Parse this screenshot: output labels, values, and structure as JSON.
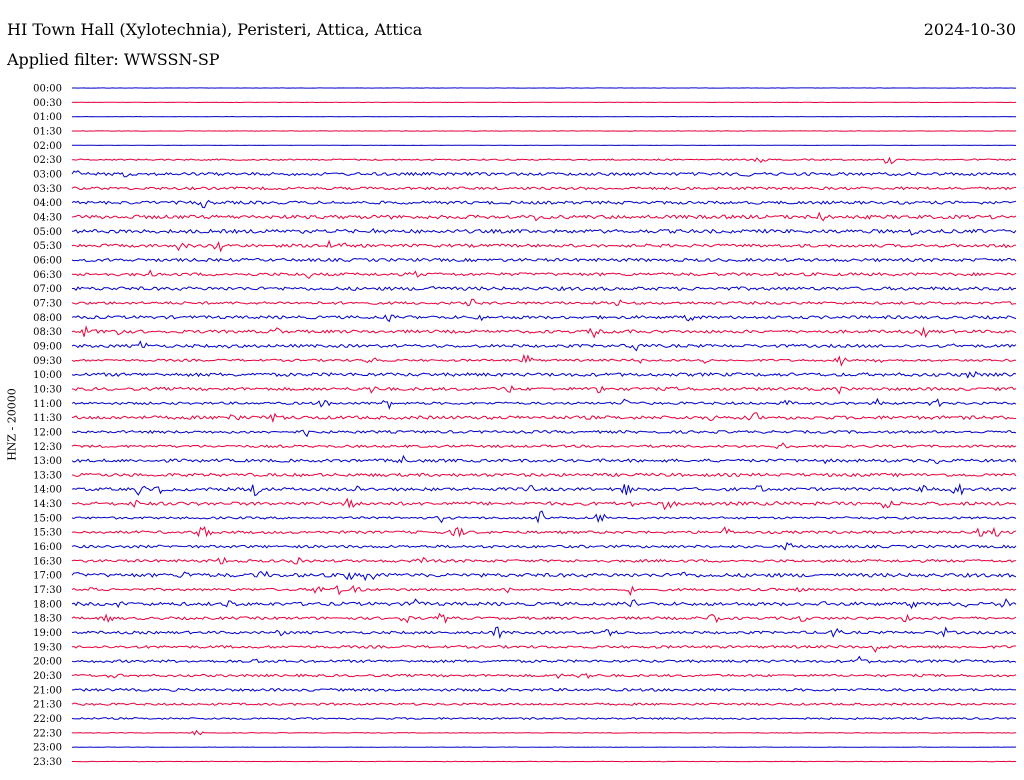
{
  "header": {
    "title": "HI Town Hall (Xylotechnia), Peristeri, Attica, Attica",
    "date": "2024-10-30",
    "filter": "Applied filter: WWSSN-SP",
    "channel_label": "HNZ - 20000"
  },
  "colors": {
    "even_line": "#0000c8",
    "odd_line": "#e8003c"
  },
  "chart_data": {
    "type": "line",
    "title": "HI Town Hall (Xylotechnia), Peristeri, Attica, Attica",
    "date": "2024-10-30",
    "ylabel": "HNZ - 20000",
    "y_tick_labels": [
      "00:00",
      "00:30",
      "01:00",
      "01:30",
      "02:00",
      "02:30",
      "03:00",
      "03:30",
      "04:00",
      "04:30",
      "05:00",
      "05:30",
      "06:00",
      "06:30",
      "07:00",
      "07:30",
      "08:00",
      "08:30",
      "09:00",
      "09:30",
      "10:00",
      "10:30",
      "11:00",
      "11:30",
      "12:00",
      "12:30",
      "13:00",
      "13:30",
      "14:00",
      "14:30",
      "15:00",
      "15:30",
      "16:00",
      "16:30",
      "17:00",
      "17:30",
      "18:00",
      "18:30",
      "19:00",
      "19:30",
      "20:00",
      "20:30",
      "21:00",
      "21:30",
      "22:00",
      "22:30",
      "23:00",
      "23:30"
    ],
    "row_noise_levels": [
      0.2,
      0.3,
      0.2,
      0.3,
      0.2,
      1.2,
      2.5,
      2.2,
      2.5,
      3.0,
      3.0,
      2.5,
      2.5,
      2.5,
      2.8,
      2.2,
      2.5,
      2.5,
      2.5,
      1.8,
      2.8,
      2.5,
      2.0,
      2.8,
      2.2,
      2.0,
      2.5,
      2.6,
      2.6,
      2.8,
      1.8,
      2.2,
      2.2,
      2.2,
      3.0,
      2.0,
      2.8,
      2.2,
      2.2,
      2.2,
      2.2,
      2.0,
      2.2,
      1.8,
      1.5,
      0.5,
      0.3,
      0.3
    ],
    "grid": false
  }
}
